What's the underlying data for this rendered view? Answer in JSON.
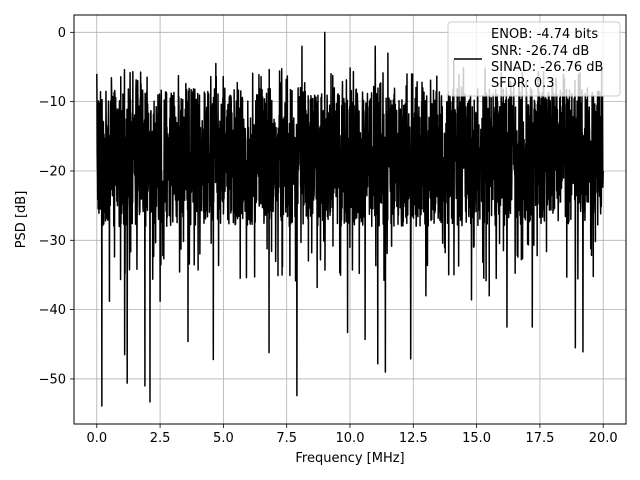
{
  "chart_data": {
    "type": "line",
    "title": "",
    "xlabel": "Frequency [MHz]",
    "ylabel": "PSD [dB]",
    "xlim": [
      -0.9,
      20.9
    ],
    "ylim": [
      -56.5,
      2.5
    ],
    "x_ticks": [
      0.0,
      2.5,
      5.0,
      7.5,
      10.0,
      12.5,
      15.0,
      17.5,
      20.0
    ],
    "x_tick_labels": [
      "0.0",
      "2.5",
      "5.0",
      "7.5",
      "10.0",
      "12.5",
      "15.0",
      "17.5",
      "20.0"
    ],
    "y_ticks": [
      0,
      -10,
      -20,
      -30,
      -40,
      -50
    ],
    "y_tick_labels": [
      "0",
      "−10",
      "−20",
      "−30",
      "−40",
      "−50"
    ],
    "grid": true,
    "legend_position": "top-right",
    "legend_lines": [
      "ENOB: -4.74 bits",
      "SNR: -26.74 dB",
      "SINAD: -26.76 dB",
      "SFDR: 0.3"
    ],
    "series_color": "#000000",
    "x_range": [
      0.0,
      20.0
    ],
    "typical_band": [
      -30,
      -7
    ],
    "start_level": -6,
    "end_level": -20,
    "peaks": [
      {
        "x": 9.0,
        "y": 0.0
      },
      {
        "x": 2.1,
        "y": -2.0
      },
      {
        "x": 8.1,
        "y": -2.0
      },
      {
        "x": 11.0,
        "y": -2.0
      },
      {
        "x": 11.5,
        "y": -3.0
      },
      {
        "x": 14.1,
        "y": -4.0
      },
      {
        "x": 4.7,
        "y": -4.5
      }
    ],
    "dips": [
      {
        "x": 0.2,
        "y": -53.9
      },
      {
        "x": 2.1,
        "y": -53.3
      },
      {
        "x": 7.9,
        "y": -52.4
      },
      {
        "x": 1.9,
        "y": -51.0
      },
      {
        "x": 1.2,
        "y": -50.6
      },
      {
        "x": 11.4,
        "y": -49.0
      },
      {
        "x": 11.1,
        "y": -47.8
      },
      {
        "x": 4.6,
        "y": -47.2
      },
      {
        "x": 12.4,
        "y": -47.1
      },
      {
        "x": 1.1,
        "y": -46.5
      },
      {
        "x": 6.8,
        "y": -46.2
      },
      {
        "x": 19.2,
        "y": -46.1
      },
      {
        "x": 18.9,
        "y": -45.5
      },
      {
        "x": 3.6,
        "y": -44.6
      },
      {
        "x": 10.6,
        "y": -44.3
      },
      {
        "x": 9.9,
        "y": -43.3
      },
      {
        "x": 16.2,
        "y": -42.5
      },
      {
        "x": 17.2,
        "y": -42.5
      },
      {
        "x": 0.5,
        "y": -38.8
      },
      {
        "x": 2.5,
        "y": -38.8
      },
      {
        "x": 14.8,
        "y": -38.6
      },
      {
        "x": 13.0,
        "y": -38.0
      },
      {
        "x": 15.5,
        "y": -38.0
      },
      {
        "x": 8.7,
        "y": -36.8
      }
    ]
  }
}
